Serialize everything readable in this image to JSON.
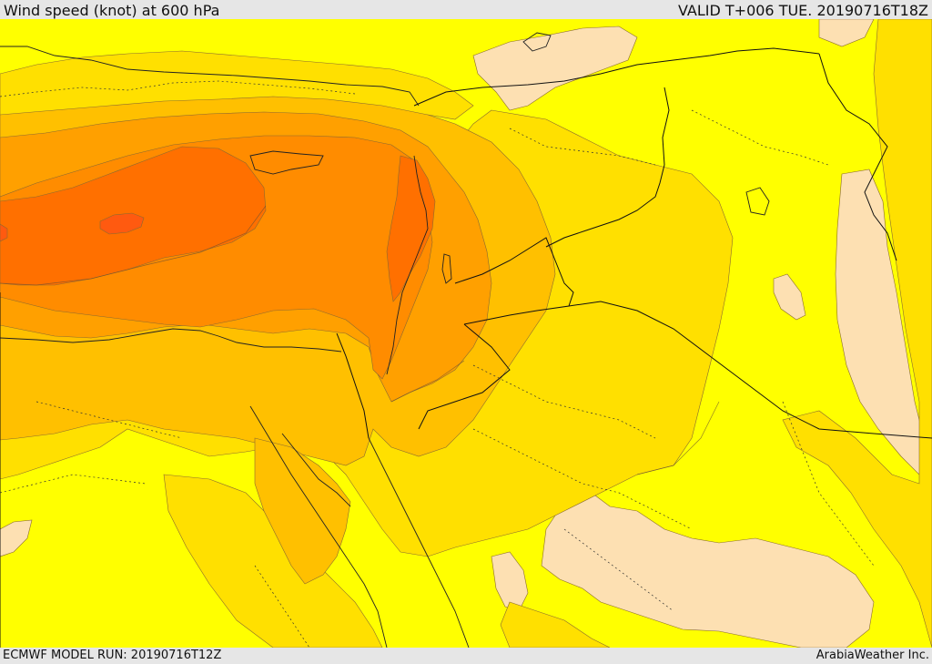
{
  "header": {
    "title": "Wind speed (knot) at 600 hPa",
    "valid_time": "VALID T+006 TUE. 20190716T18Z"
  },
  "footer": {
    "model_run": "ECMWF MODEL RUN: 20190716T12Z",
    "credit": "ArabiaWeather Inc."
  },
  "map": {
    "palette": {
      "very_light": "#fde0b2",
      "light": "#ffff00",
      "low": "#ffe000",
      "mid_low": "#ffc000",
      "mid": "#ffa000",
      "high": "#ff8c00",
      "very_high": "#ff7000",
      "highest": "#ff5a10"
    },
    "layers": [
      "wind-speed-fill",
      "wind-speed-contours",
      "coastlines",
      "country-borders",
      "province-borders"
    ]
  }
}
